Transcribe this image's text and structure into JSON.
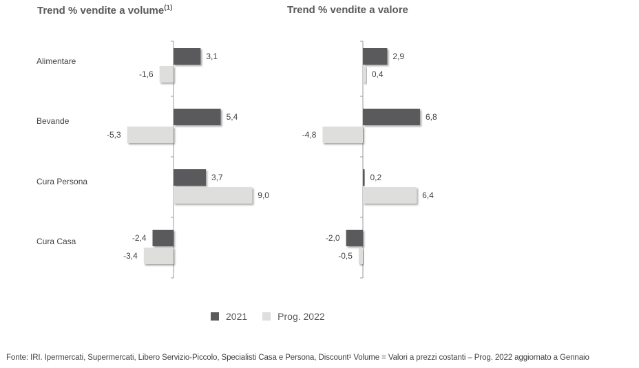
{
  "colors": {
    "series_2021": "#5a5a5c",
    "series_2022": "#dededc",
    "axis": "#999999",
    "text": "#595959"
  },
  "charts": {
    "volume": {
      "title": "Trend % vendite a volume",
      "title_sup": "(1)"
    },
    "value": {
      "title": "Trend % vendite a valore"
    }
  },
  "categories": [
    "Alimentare",
    "Bevande",
    "Cura Persona",
    "Cura Casa"
  ],
  "legend": {
    "items": [
      {
        "label": "2021"
      },
      {
        "label": "Prog. 2022"
      }
    ]
  },
  "footnote": "Fonte: IRI. Ipermercati, Supermercati, Libero Servizio-Piccolo, Specialisti Casa e Persona, Discount¹ Volume = Valori a prezzi costanti – Prog. 2022 aggiornato a Gennaio",
  "chart_data": [
    {
      "type": "bar",
      "orientation": "horizontal",
      "title": "Trend % vendite a volume(1)",
      "categories": [
        "Alimentare",
        "Bevande",
        "Cura Persona",
        "Cura Casa"
      ],
      "series": [
        {
          "name": "2021",
          "values": [
            3.1,
            5.4,
            3.7,
            -2.4
          ],
          "labels": [
            "3,1",
            "5,4",
            "3,7",
            "-2,4"
          ]
        },
        {
          "name": "Prog. 2022",
          "values": [
            -1.6,
            -5.3,
            9.0,
            -3.4
          ],
          "labels": [
            "-1,6",
            "-5,3",
            "9,0",
            "-3,4"
          ]
        }
      ],
      "legend": "bottom",
      "grid": false
    },
    {
      "type": "bar",
      "orientation": "horizontal",
      "title": "Trend % vendite a valore",
      "categories": [
        "Alimentare",
        "Bevande",
        "Cura Persona",
        "Cura Casa"
      ],
      "series": [
        {
          "name": "2021",
          "values": [
            2.9,
            6.8,
            0.2,
            -2.0
          ],
          "labels": [
            "2,9",
            "6,8",
            "0,2",
            "-2,0"
          ]
        },
        {
          "name": "Prog. 2022",
          "values": [
            0.4,
            -4.8,
            6.4,
            -0.5
          ],
          "labels": [
            "0,4",
            "-4,8",
            "6,4",
            "-0,5"
          ]
        }
      ],
      "legend": "bottom",
      "grid": false
    }
  ]
}
